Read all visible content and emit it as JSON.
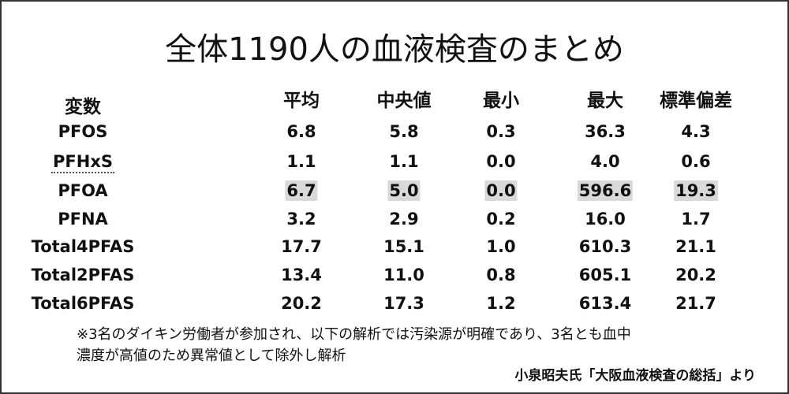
{
  "title": "全体1190人の血液検査のまとめ",
  "table": {
    "header": [
      "変数",
      "平均",
      "中央値",
      "最小",
      "最大",
      "標準偏差"
    ],
    "rows": [
      [
        "PFOS",
        "6.8",
        "5.8",
        "0.3",
        "36.3",
        "4.3"
      ],
      [
        "PFHxS",
        "1.1",
        "1.1",
        "0.0",
        "4.0",
        "0.6"
      ],
      [
        "PFOA",
        "6.7",
        "5.0",
        "0.0",
        "596.6",
        "19.3"
      ],
      [
        "PFNA",
        "3.2",
        "2.9",
        "0.2",
        "16.0",
        "1.7"
      ],
      [
        "Total4PFAS",
        "17.7",
        "15.1",
        "1.0",
        "610.3",
        "21.1"
      ],
      [
        "Total2PFAS",
        "13.4",
        "11.0",
        "0.8",
        "605.1",
        "20.2"
      ],
      [
        "Total6PFAS",
        "20.2",
        "17.3",
        "1.2",
        "613.4",
        "21.7"
      ]
    ]
  },
  "note": [
    "※3名のダイキン労働者が参加され、以下の解析では汚染源が明確であり、3名とも血中",
    "濃度が高値のため異常値として除外し解析"
  ],
  "source": "小泉昭夫氏「大阪血液検査の総括」より"
}
